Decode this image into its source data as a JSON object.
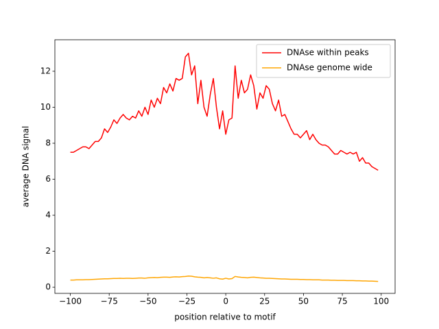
{
  "chart_data": {
    "type": "line",
    "xlabel": "position relative to motif",
    "ylabel": "average DNA signal",
    "x": [
      -100,
      -98,
      -96,
      -94,
      -92,
      -90,
      -88,
      -86,
      -84,
      -82,
      -80,
      -78,
      -76,
      -74,
      -72,
      -70,
      -68,
      -66,
      -64,
      -62,
      -60,
      -58,
      -56,
      -54,
      -52,
      -50,
      -48,
      -46,
      -44,
      -42,
      -40,
      -38,
      -36,
      -34,
      -32,
      -30,
      -28,
      -26,
      -24,
      -22,
      -20,
      -18,
      -16,
      -14,
      -12,
      -10,
      -8,
      -6,
      -4,
      -2,
      0,
      2,
      4,
      6,
      8,
      10,
      12,
      14,
      16,
      18,
      20,
      22,
      24,
      26,
      28,
      30,
      32,
      34,
      36,
      38,
      40,
      42,
      44,
      46,
      48,
      50,
      52,
      54,
      56,
      58,
      60,
      62,
      64,
      66,
      68,
      70,
      72,
      74,
      76,
      78,
      80,
      82,
      84,
      86,
      88,
      90,
      92,
      94,
      96,
      98
    ],
    "series": [
      {
        "name": "DNAse within peaks",
        "color": "#ff0000",
        "values": [
          7.5,
          7.5,
          7.6,
          7.7,
          7.8,
          7.8,
          7.7,
          7.9,
          8.1,
          8.1,
          8.3,
          8.8,
          8.6,
          8.9,
          9.3,
          9.1,
          9.4,
          9.6,
          9.4,
          9.3,
          9.5,
          9.4,
          9.8,
          9.5,
          10.0,
          9.6,
          10.4,
          10.0,
          10.5,
          10.2,
          11.1,
          10.8,
          11.3,
          10.9,
          11.6,
          11.5,
          11.6,
          12.8,
          13.0,
          11.8,
          12.3,
          10.2,
          11.5,
          10.0,
          9.5,
          10.7,
          11.6,
          10.0,
          8.8,
          9.8,
          8.5,
          9.3,
          9.4,
          12.3,
          10.5,
          11.5,
          10.8,
          11.0,
          11.8,
          11.2,
          9.9,
          10.8,
          10.5,
          11.2,
          11.0,
          10.2,
          9.8,
          10.4,
          9.5,
          9.6,
          9.2,
          8.8,
          8.5,
          8.5,
          8.3,
          8.5,
          8.7,
          8.2,
          8.5,
          8.2,
          8.0,
          7.9,
          7.9,
          7.8,
          7.6,
          7.4,
          7.4,
          7.6,
          7.5,
          7.4,
          7.5,
          7.4,
          7.5,
          7.0,
          7.2,
          6.9,
          6.9,
          6.7,
          6.6,
          6.5
        ]
      },
      {
        "name": "DNAse genome wide",
        "color": "#ffa500",
        "values": [
          0.4,
          0.4,
          0.41,
          0.41,
          0.41,
          0.42,
          0.42,
          0.43,
          0.44,
          0.45,
          0.46,
          0.47,
          0.47,
          0.48,
          0.49,
          0.49,
          0.5,
          0.49,
          0.5,
          0.5,
          0.49,
          0.5,
          0.51,
          0.51,
          0.5,
          0.52,
          0.53,
          0.54,
          0.53,
          0.55,
          0.56,
          0.56,
          0.55,
          0.57,
          0.58,
          0.57,
          0.59,
          0.6,
          0.62,
          0.61,
          0.58,
          0.56,
          0.55,
          0.52,
          0.54,
          0.52,
          0.5,
          0.52,
          0.47,
          0.45,
          0.5,
          0.46,
          0.48,
          0.6,
          0.57,
          0.55,
          0.54,
          0.52,
          0.55,
          0.56,
          0.54,
          0.52,
          0.51,
          0.5,
          0.5,
          0.49,
          0.48,
          0.47,
          0.46,
          0.46,
          0.45,
          0.44,
          0.44,
          0.44,
          0.43,
          0.43,
          0.42,
          0.42,
          0.41,
          0.41,
          0.41,
          0.4,
          0.4,
          0.4,
          0.39,
          0.39,
          0.38,
          0.38,
          0.38,
          0.37,
          0.37,
          0.37,
          0.36,
          0.36,
          0.35,
          0.35,
          0.34,
          0.34,
          0.33,
          0.32
        ]
      }
    ],
    "xlim": [
      -109.95,
      108.95
    ],
    "ylim": [
      -0.34,
      13.75
    ],
    "xticks": [
      {
        "value": -100,
        "label": "−100"
      },
      {
        "value": -75,
        "label": "−75"
      },
      {
        "value": -50,
        "label": "−50"
      },
      {
        "value": -25,
        "label": "−25"
      },
      0,
      25,
      50,
      75,
      100
    ],
    "yticks": [
      0,
      2,
      4,
      6,
      8,
      10,
      12
    ],
    "legend": "upper right"
  }
}
